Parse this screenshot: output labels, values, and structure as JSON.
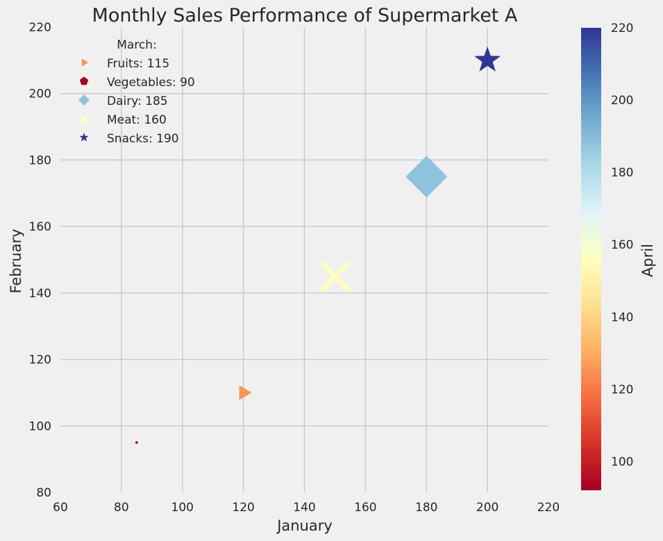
{
  "chart_data": {
    "type": "scatter",
    "title": "Monthly Sales Performance of Supermarket A",
    "xlabel": "January",
    "ylabel": "February",
    "colorbar_label": "April",
    "xlim": [
      60,
      220
    ],
    "ylim": [
      80,
      220
    ],
    "xticks": [
      60,
      80,
      100,
      120,
      140,
      160,
      180,
      200,
      220
    ],
    "yticks": [
      80,
      100,
      120,
      140,
      160,
      180,
      200,
      220
    ],
    "colorbar_range": [
      92,
      220
    ],
    "colorbar_ticks": [
      100,
      120,
      140,
      160,
      180,
      200,
      220
    ],
    "colormap": "RdYlBu",
    "grid": true,
    "legend": {
      "title": "March:",
      "placement": "top-left"
    },
    "series": [
      {
        "name": "Fruits: 115",
        "category": "Fruits",
        "x": 120,
        "y": 110,
        "march": 115,
        "april": 130,
        "marker": "triangle-right",
        "color": "#f99455"
      },
      {
        "name": "Vegetables: 90",
        "category": "Vegetables",
        "x": 85,
        "y": 95,
        "march": 90,
        "april": 92,
        "marker": "pentagon",
        "color": "#a50026"
      },
      {
        "name": "Dairy: 185",
        "category": "Dairy",
        "x": 180,
        "y": 175,
        "march": 185,
        "april": 190,
        "marker": "diamond",
        "color": "#8fc3dd"
      },
      {
        "name": "Meat: 160",
        "category": "Meat",
        "x": 150,
        "y": 145,
        "march": 160,
        "april": 160,
        "marker": "x",
        "color": "#fefec0"
      },
      {
        "name": "Snacks: 190",
        "category": "Snacks",
        "x": 200,
        "y": 210,
        "march": 190,
        "april": 220,
        "marker": "star",
        "color": "#313695"
      }
    ]
  }
}
